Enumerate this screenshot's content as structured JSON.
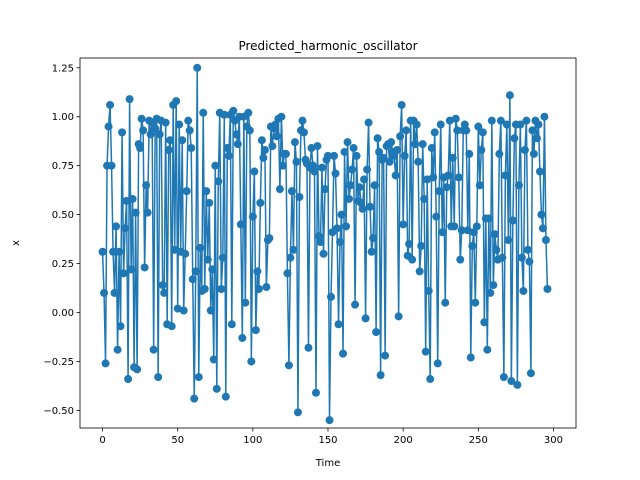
{
  "chart_data": {
    "type": "line",
    "title": "Predicted_harmonic_oscillator",
    "xlabel": "Time",
    "ylabel": "x",
    "xlim": [
      -15,
      315
    ],
    "ylim": [
      -0.59,
      1.3
    ],
    "x_ticks": [
      0,
      50,
      100,
      150,
      200,
      250,
      300
    ],
    "y_ticks": [
      -0.5,
      -0.25,
      0.0,
      0.25,
      0.5,
      0.75,
      1.0,
      1.25
    ],
    "y_tick_format": 2,
    "grid": false,
    "legend": "none",
    "series": [
      {
        "color": "#1f77b4",
        "marker": "circle",
        "x_start": 0,
        "x_step": 1,
        "values": [
          0.31,
          0.1,
          -0.26,
          0.75,
          0.95,
          1.06,
          0.75,
          0.31,
          0.1,
          0.44,
          -0.19,
          0.31,
          -0.07,
          0.92,
          0.2,
          0.43,
          0.57,
          -0.34,
          1.09,
          0.22,
          0.58,
          -0.28,
          0.51,
          -0.29,
          0.86,
          0.84,
          0.99,
          0.93,
          0.23,
          0.65,
          0.51,
          0.98,
          0.91,
          0.97,
          -0.19,
          0.94,
          0.99,
          -0.33,
          0.91,
          0.98,
          0.14,
          0.1,
          0.97,
          -0.06,
          0.83,
          0.88,
          -0.07,
          1.06,
          0.32,
          1.08,
          0.02,
          0.96,
          0.31,
          0.88,
          0.01,
          0.3,
          0.62,
          0.98,
          0.93,
          0.84,
          0.17,
          -0.44,
          0.21,
          1.25,
          -0.33,
          0.33,
          0.11,
          1.02,
          0.12,
          0.62,
          0.27,
          0.56,
          0.01,
          0.22,
          -0.24,
          0.75,
          -0.39,
          0.67,
          1.02,
          0.12,
          0.28,
          1.01,
          -0.43,
          0.84,
          0.8,
          1.01,
          -0.06,
          1.03,
          0.98,
          0.91,
          0.86,
          1.0,
          0.45,
          -0.13,
          1.0,
          0.05,
          0.95,
          1.02,
          0.93,
          -0.25,
          0.49,
          0.72,
          -0.09,
          0.21,
          0.12,
          0.56,
          0.88,
          0.79,
          0.83,
          0.13,
          0.37,
          0.38,
          0.95,
          0.85,
          0.94,
          0.96,
          0.9,
          0.99,
          0.63,
          1.0,
          0.75,
          0.81,
          0.81,
          0.2,
          -0.27,
          0.28,
          0.62,
          0.32,
          0.87,
          0.77,
          -0.51,
          0.59,
          0.93,
          0.98,
          0.92,
          0.78,
          0.76,
          -0.18,
          0.74,
          0.84,
          0.75,
          0.72,
          -0.41,
          0.85,
          0.39,
          0.36,
          0.74,
          0.3,
          0.63,
          0.78,
          0.8,
          -0.55,
          0.08,
          0.41,
          0.8,
          0.71,
          0.43,
          -0.06,
          0.36,
          0.5,
          -0.21,
          0.82,
          0.44,
          0.87,
          0.58,
          0.65,
          0.73,
          0.84,
          0.04,
          0.8,
          0.57,
          0.64,
          0.56,
          0.53,
          0.68,
          -0.03,
          0.73,
          0.97,
          0.54,
          0.31,
          0.38,
          0.65,
          -0.1,
          0.89,
          0.82,
          -0.32,
          0.78,
          0.79,
          -0.22,
          0.85,
          0.86,
          0.77,
          0.87,
          0.82,
          0.8,
          0.7,
          0.83,
          -0.02,
          0.9,
          1.06,
          0.45,
          0.8,
          0.93,
          0.29,
          0.35,
          0.98,
          0.27,
          0.98,
          0.86,
          0.96,
          0.77,
          0.21,
          0.34,
          0.86,
          0.58,
          -0.2,
          0.68,
          0.11,
          -0.34,
          0.84,
          0.69,
          0.92,
          0.49,
          -0.26,
          0.62,
          0.96,
          0.41,
          0.69,
          0.05,
          0.64,
          0.7,
          0.98,
          0.44,
          0.79,
          0.44,
          0.99,
          0.93,
          0.69,
          0.27,
          0.42,
          0.93,
          0.96,
          0.93,
          0.42,
          0.81,
          -0.23,
          0.34,
          0.41,
          0.05,
          0.44,
          0.95,
          0.65,
          0.83,
          0.92,
          -0.05,
          0.48,
          -0.19,
          0.48,
          0.1,
          0.98,
          0.14,
          0.4,
          0.32,
          0.27,
          0.81,
          0.98,
          0.28,
          -0.33,
          0.7,
          0.96,
          0.37,
          1.11,
          -0.35,
          0.47,
          0.89,
          0.96,
          -0.37,
          0.65,
          0.96,
          0.28,
          0.11,
          0.83,
          0.98,
          0.32,
          0.26,
          -0.31,
          0.93,
          0.81,
          0.98,
          0.89,
          0.96,
          0.72,
          0.5,
          0.43,
          1.0,
          0.37,
          0.12
        ]
      }
    ]
  }
}
